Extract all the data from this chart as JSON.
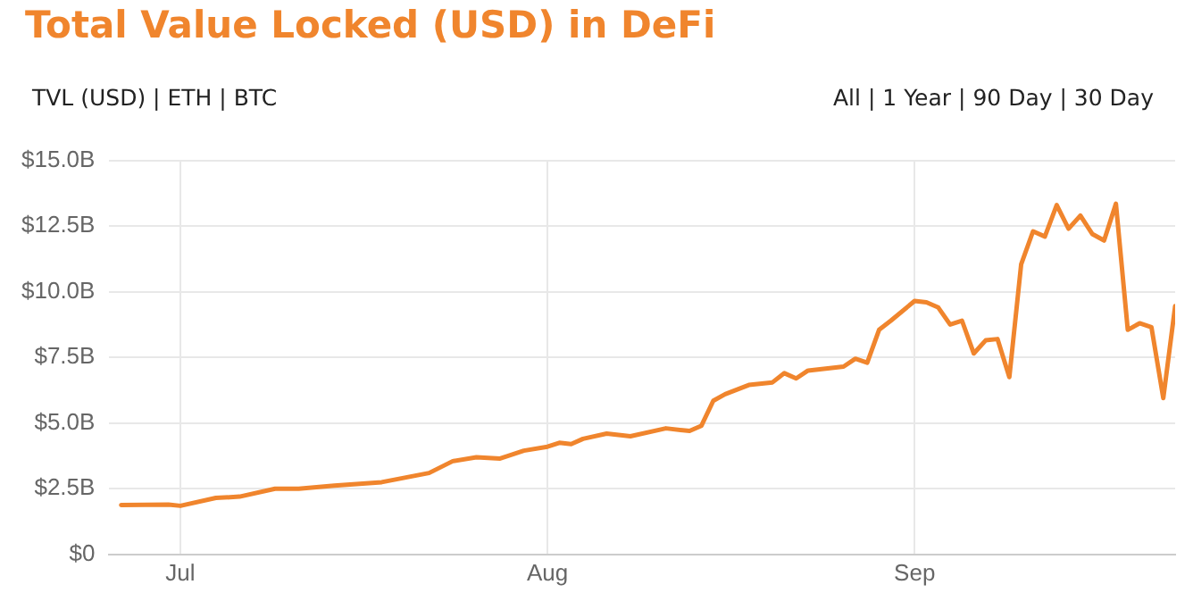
{
  "chart_data": {
    "type": "line",
    "title": "Total Value Locked (USD) in DeFi",
    "annotations": [
      "TVL (USD) | ETH | BTC",
      "All | 1 Year | 90 Day | 30 Day"
    ],
    "x": [
      "--06-26",
      "--06-30",
      "--07-01",
      "--07-04",
      "--07-06",
      "--07-09",
      "--07-11",
      "--07-14",
      "--07-18",
      "--07-22",
      "--07-24",
      "--07-26",
      "--07-28",
      "--07-30",
      "--08-01",
      "--08-02",
      "--08-03",
      "--08-04",
      "--08-06",
      "--08-08",
      "--08-11",
      "--08-13",
      "--08-14",
      "--08-15",
      "--08-16",
      "--08-18",
      "--08-20",
      "--08-21",
      "--08-22",
      "--08-23",
      "--08-26",
      "--08-27",
      "--08-28",
      "--08-29",
      "--08-30",
      "--09-01",
      "--09-02",
      "--09-03",
      "--09-04",
      "--09-05",
      "--09-06",
      "--09-07",
      "--09-08",
      "--09-09",
      "--09-10",
      "--09-11",
      "--09-12",
      "--09-13",
      "--09-14",
      "--09-15",
      "--09-16",
      "--09-17",
      "--09-18",
      "--09-19",
      "--09-20",
      "--09-21",
      "--09-22",
      "--09-23"
    ],
    "series": [
      {
        "color": "#f0852d",
        "values": [
          1.88,
          1.9,
          1.85,
          2.15,
          2.2,
          2.5,
          2.5,
          2.62,
          2.75,
          3.1,
          3.55,
          3.7,
          3.65,
          3.95,
          4.1,
          4.25,
          4.2,
          4.4,
          4.6,
          4.5,
          4.8,
          4.7,
          4.9,
          5.85,
          6.1,
          6.45,
          6.55,
          6.9,
          6.7,
          7.0,
          7.15,
          7.45,
          7.3,
          8.55,
          8.9,
          9.65,
          9.6,
          9.4,
          8.75,
          8.9,
          7.65,
          8.15,
          8.2,
          6.75,
          11.05,
          12.3,
          12.1,
          13.3,
          12.4,
          12.9,
          12.2,
          11.95,
          13.35,
          8.55,
          8.8,
          8.65,
          5.95,
          9.45
        ]
      }
    ],
    "xlim": [
      "--06-25",
      "--09-23"
    ],
    "xticks": [
      {
        "value": "--07-01",
        "label": "Jul"
      },
      {
        "value": "--08-01",
        "label": "Aug"
      },
      {
        "value": "--09-01",
        "label": "Sep"
      }
    ],
    "ylim": [
      0,
      15
    ],
    "yticks": [
      {
        "value": 0,
        "label": "$0"
      },
      {
        "value": 2.5,
        "label": "$2.5B"
      },
      {
        "value": 5,
        "label": "$5.0B"
      },
      {
        "value": 7.5,
        "label": "$7.5B"
      },
      {
        "value": 10,
        "label": "$10.0B"
      },
      {
        "value": 12.5,
        "label": "$12.5B"
      },
      {
        "value": 15,
        "label": "$15.0B"
      }
    ],
    "grid": true,
    "legend": false,
    "marker": "none",
    "line_style": "solid"
  }
}
